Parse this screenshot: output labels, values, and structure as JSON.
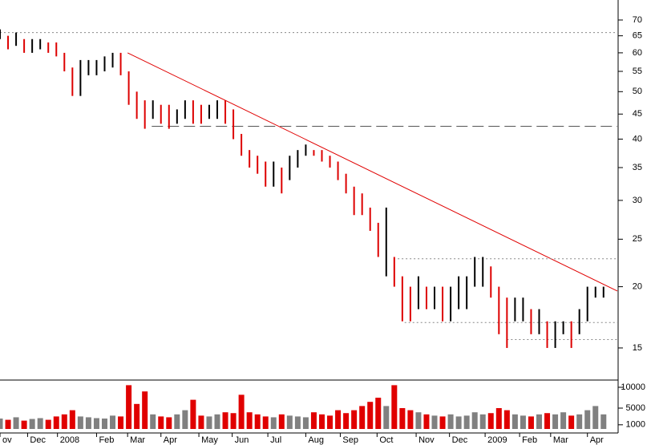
{
  "chart_data": [
    {
      "type": "range-bar",
      "log": true,
      "x": [
        0,
        7,
        14,
        21,
        28,
        35,
        42,
        49,
        56,
        63,
        70,
        77,
        84,
        91,
        98,
        105,
        112,
        119,
        126,
        133,
        140,
        147,
        154,
        161,
        168,
        175,
        182,
        189,
        196,
        203,
        210,
        217,
        224,
        231,
        238,
        245,
        252,
        259,
        266,
        273,
        280,
        287,
        294,
        301,
        308,
        315,
        322,
        329,
        336,
        343,
        350,
        357,
        364,
        371,
        378,
        385,
        392,
        399,
        406,
        413,
        420,
        427,
        434,
        441,
        448,
        455,
        462,
        469,
        476,
        483,
        490,
        497,
        504,
        511,
        518,
        525
      ],
      "high": [
        67,
        65,
        66,
        64,
        64,
        64,
        63,
        63,
        60,
        56,
        58,
        58,
        58,
        59,
        60,
        60,
        55,
        50,
        48,
        48,
        47,
        47,
        46,
        48,
        48,
        47,
        47,
        48,
        48,
        46,
        41,
        38,
        37,
        36,
        36,
        35,
        37,
        38,
        39,
        38,
        38,
        37,
        36,
        34,
        32,
        31,
        29,
        27,
        29,
        23,
        21,
        20,
        21,
        20,
        20,
        20,
        20,
        21,
        21,
        23,
        23,
        22,
        20,
        19,
        19,
        19,
        18,
        18,
        17,
        17,
        17,
        17,
        18,
        20,
        20,
        20
      ],
      "low": [
        64,
        61,
        62,
        60,
        60,
        61,
        60,
        59,
        55,
        49,
        49,
        54,
        54,
        55,
        56,
        54,
        47,
        44,
        42,
        44,
        43,
        42,
        43,
        44,
        43,
        43,
        44,
        44,
        43,
        40,
        37,
        35,
        34,
        32,
        32,
        31,
        33,
        35,
        37,
        37,
        36,
        35,
        33,
        31,
        28,
        28,
        26,
        23,
        21,
        20,
        17,
        17,
        18,
        18,
        18,
        17,
        17,
        18,
        18,
        20,
        20,
        19,
        16,
        15,
        17,
        17,
        16,
        16,
        15,
        15,
        16,
        15,
        16,
        17,
        19,
        19
      ],
      "colors": {
        "up": "#000000",
        "down": "#dd0000"
      },
      "xlim": [
        0,
        537
      ],
      "ylim": [
        12.9,
        76.9
      ],
      "yticks": [
        15,
        20,
        25,
        30,
        35,
        40,
        45,
        50,
        55,
        60,
        65,
        70
      ],
      "lines": [
        {
          "x": [
            111,
            537
          ],
          "y": [
            60,
            19.6
          ],
          "color": "#e00000",
          "style": "solid"
        },
        {
          "x": [
            0,
            537
          ],
          "y": [
            66,
            66
          ],
          "color": "#888888",
          "style": "dotted"
        },
        {
          "x": [
            132,
            537
          ],
          "y": [
            42.5,
            42.5
          ],
          "color": "#555555",
          "style": "dashed"
        },
        {
          "x": [
            346,
            537
          ],
          "y": [
            22.8,
            22.8
          ],
          "color": "#888888",
          "style": "dotted"
        },
        {
          "x": [
            352,
            537
          ],
          "y": [
            16.9,
            16.9
          ],
          "color": "#888888",
          "style": "dotted"
        },
        {
          "x": [
            441,
            537
          ],
          "y": [
            15.6,
            15.6
          ],
          "color": "#888888",
          "style": "dotted"
        }
      ]
    },
    {
      "type": "bar",
      "x": [
        0,
        7,
        14,
        21,
        28,
        35,
        42,
        49,
        56,
        63,
        70,
        77,
        84,
        91,
        98,
        105,
        112,
        119,
        126,
        133,
        140,
        147,
        154,
        161,
        168,
        175,
        182,
        189,
        196,
        203,
        210,
        217,
        224,
        231,
        238,
        245,
        252,
        259,
        266,
        273,
        280,
        287,
        294,
        301,
        308,
        315,
        322,
        329,
        336,
        343,
        350,
        357,
        364,
        371,
        378,
        385,
        392,
        399,
        406,
        413,
        420,
        427,
        434,
        441,
        448,
        455,
        462,
        469,
        476,
        483,
        490,
        497,
        504,
        511,
        518,
        525
      ],
      "values": [
        2500,
        2200,
        2800,
        2000,
        2400,
        2600,
        2200,
        3000,
        3500,
        4500,
        3000,
        2800,
        2600,
        2500,
        3200,
        3000,
        10500,
        6000,
        9000,
        3500,
        3000,
        2800,
        3500,
        4500,
        7000,
        3200,
        3000,
        3500,
        4000,
        3800,
        8200,
        4000,
        3500,
        3000,
        2800,
        3500,
        3200,
        3000,
        2800,
        4000,
        3500,
        3200,
        4500,
        3800,
        4500,
        5500,
        6500,
        7500,
        5500,
        10500,
        5000,
        4500,
        4000,
        3500,
        3200,
        3000,
        3500,
        3000,
        3200,
        4000,
        3500,
        3800,
        5000,
        4500,
        3500,
        3200,
        3000,
        3500,
        3800,
        3500,
        4000,
        3200,
        3500,
        4500,
        5500,
        3500
      ],
      "colors": {
        "up": "#808080",
        "down": "#e00000"
      },
      "xlim": [
        0,
        537
      ],
      "ylim": [
        -960,
        11730
      ],
      "yticks": [
        1000,
        5000,
        10000
      ],
      "xticks": [
        {
          "value": 0,
          "label": "ov"
        },
        {
          "value": 24,
          "label": "Dec"
        },
        {
          "value": 50,
          "label": "2008"
        },
        {
          "value": 84,
          "label": "Feb"
        },
        {
          "value": 111,
          "label": "Mar"
        },
        {
          "value": 140,
          "label": "Apr"
        },
        {
          "value": 173,
          "label": "May"
        },
        {
          "value": 202,
          "label": "Jun"
        },
        {
          "value": 233,
          "label": "Jul"
        },
        {
          "value": 266,
          "label": "Aug"
        },
        {
          "value": 296,
          "label": "Sep"
        },
        {
          "value": 328,
          "label": "Oct"
        },
        {
          "value": 362,
          "label": "Nov"
        },
        {
          "value": 391,
          "label": "Dec"
        },
        {
          "value": 422,
          "label": "2009"
        },
        {
          "value": 452,
          "label": "Feb"
        },
        {
          "value": 479,
          "label": "Mar"
        },
        {
          "value": 511,
          "label": "Apr"
        }
      ]
    }
  ]
}
